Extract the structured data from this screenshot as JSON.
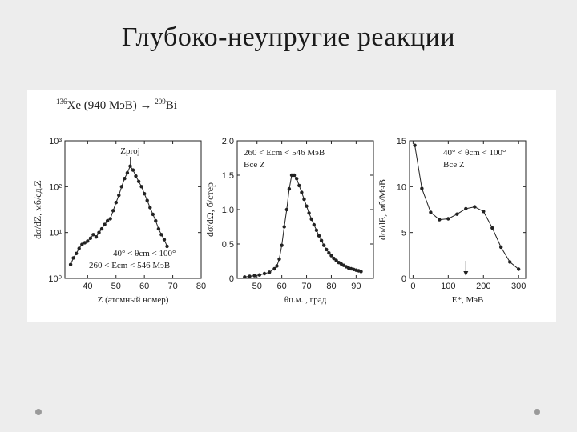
{
  "slide": {
    "title": "Глубоко-неупругие реакции"
  },
  "reaction": {
    "a": "136",
    "proj": "Xe (940 МэВ) → ",
    "b": "209",
    "target": "Bi"
  },
  "chart_data": [
    {
      "type": "line",
      "yscale": "log",
      "xlabel": "Z (атомный номер)",
      "ylabel": "dσ/dZ, мб/ед.Z",
      "xlim": [
        32,
        80
      ],
      "ylim": [
        1,
        1000
      ],
      "xticks": [
        "40",
        "50",
        "60",
        "70",
        "80"
      ],
      "xtickvals": [
        40,
        50,
        60,
        70,
        80
      ],
      "yticks": [
        "10⁰",
        "10¹",
        "10²",
        "10³"
      ],
      "ytickvals": [
        1,
        10,
        100,
        1000
      ],
      "annotations": [
        "Zproj",
        "40° < θcm < 100°",
        "260 < Ecm < 546 МэВ"
      ],
      "series": [
        {
          "x": [
            34,
            35,
            36,
            37,
            38,
            39,
            40,
            41,
            42,
            43,
            44,
            45,
            46,
            47,
            48,
            49,
            50,
            51,
            52,
            53,
            54,
            55,
            56,
            57,
            58,
            59,
            60,
            61,
            62,
            63,
            64,
            65,
            66,
            67,
            68
          ],
          "y": [
            2.0,
            2.8,
            3.5,
            4.5,
            5.5,
            6.0,
            6.5,
            7.5,
            9,
            8,
            10,
            12,
            15,
            18,
            20,
            30,
            45,
            65,
            100,
            150,
            200,
            280,
            230,
            170,
            130,
            100,
            70,
            50,
            35,
            25,
            18,
            12,
            9,
            7,
            5
          ]
        }
      ]
    },
    {
      "type": "line",
      "xlabel": "θц.м. , град",
      "ylabel": "dσ/dΩ, б/стер",
      "xlim": [
        42,
        97
      ],
      "ylim": [
        0,
        2.0
      ],
      "xticks": [
        "50",
        "60",
        "70",
        "80",
        "90"
      ],
      "xtickvals": [
        50,
        60,
        70,
        80,
        90
      ],
      "yticks": [
        "0",
        "0.5",
        "1.0",
        "1.5",
        "2.0"
      ],
      "ytickvals": [
        0,
        0.5,
        1.0,
        1.5,
        2.0
      ],
      "annotations": [
        "260 < Ecm < 546 МэВ",
        "Все Z"
      ],
      "series": [
        {
          "x": [
            45,
            47,
            49,
            51,
            53,
            55,
            57,
            58,
            59,
            60,
            61,
            62,
            63,
            64,
            65,
            66,
            67,
            68,
            69,
            70,
            71,
            72,
            73,
            74,
            75,
            76,
            77,
            78,
            79,
            80,
            81,
            82,
            83,
            84,
            85,
            86,
            87,
            88,
            89,
            90,
            91,
            92
          ],
          "y": [
            0.02,
            0.03,
            0.04,
            0.05,
            0.07,
            0.09,
            0.14,
            0.18,
            0.28,
            0.48,
            0.75,
            1.0,
            1.3,
            1.5,
            1.5,
            1.45,
            1.35,
            1.25,
            1.15,
            1.05,
            0.95,
            0.86,
            0.78,
            0.7,
            0.62,
            0.55,
            0.48,
            0.42,
            0.37,
            0.33,
            0.29,
            0.26,
            0.23,
            0.21,
            0.19,
            0.17,
            0.15,
            0.14,
            0.13,
            0.12,
            0.11,
            0.1
          ]
        }
      ]
    },
    {
      "type": "line",
      "xlabel": "E*, МэВ",
      "ylabel": "dσ/dE, мб/МэВ",
      "xlim": [
        -10,
        320
      ],
      "ylim": [
        0,
        15
      ],
      "xticks": [
        "0",
        "100",
        "200",
        "300"
      ],
      "xtickvals": [
        0,
        100,
        200,
        300
      ],
      "yticks": [
        "0",
        "5",
        "10",
        "15"
      ],
      "ytickvals": [
        0,
        5,
        10,
        15
      ],
      "annotations": [
        "40° < θcm < 100°",
        "Все Z"
      ],
      "arrow_at": 150,
      "series": [
        {
          "x": [
            5,
            25,
            50,
            75,
            100,
            125,
            150,
            175,
            200,
            225,
            250,
            275,
            300
          ],
          "y": [
            14.5,
            9.8,
            7.2,
            6.4,
            6.5,
            7.0,
            7.6,
            7.8,
            7.3,
            5.5,
            3.4,
            1.8,
            1.0
          ]
        }
      ]
    }
  ]
}
